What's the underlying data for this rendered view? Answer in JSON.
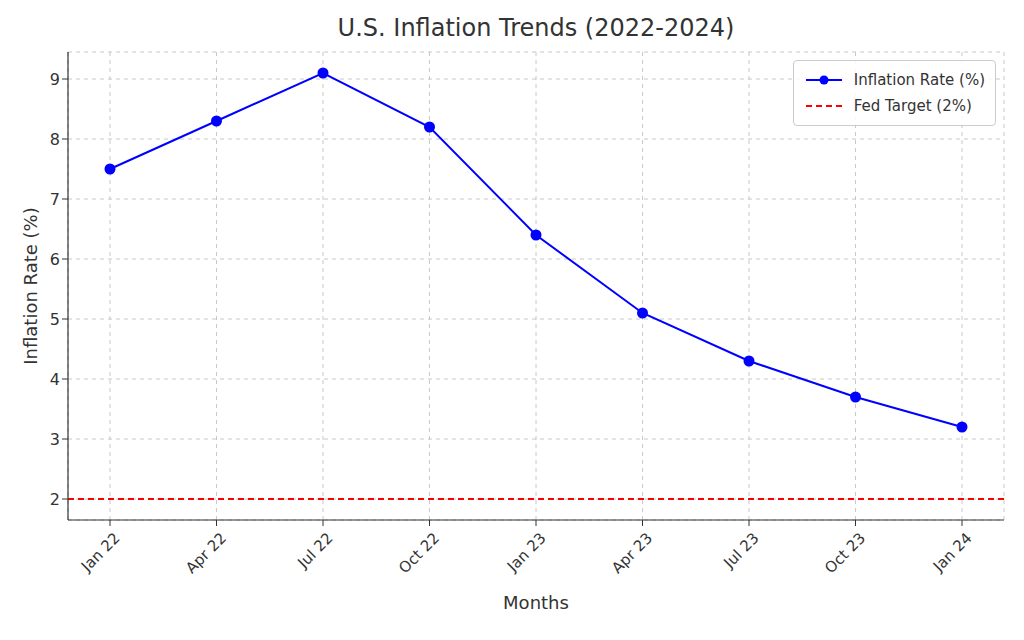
{
  "chart_data": {
    "type": "line",
    "title": "U.S. Inflation Trends (2022-2024)",
    "x_label": "Months",
    "y_label": "Inflation Rate (%)",
    "categories": [
      "Jan 22",
      "Apr 22",
      "Jul 22",
      "Oct 22",
      "Jan 23",
      "Apr 23",
      "Jul 23",
      "Oct 23",
      "Jan 24"
    ],
    "series": [
      {
        "name": "Inflation Rate (%)",
        "color": "#0000ff",
        "marker": "circle",
        "line_style": "solid",
        "values": [
          7.5,
          8.3,
          9.1,
          8.2,
          6.4,
          5.1,
          4.3,
          3.7,
          3.2
        ]
      }
    ],
    "reference_lines": [
      {
        "name": "Fed Target (2%)",
        "value": 2,
        "color": "#ff0000",
        "line_style": "dashed"
      }
    ],
    "ylim": [
      1.65,
      9.45
    ],
    "yticks": [
      2,
      3,
      4,
      5,
      6,
      7,
      8,
      9
    ],
    "grid": true,
    "legend": "upper right"
  }
}
